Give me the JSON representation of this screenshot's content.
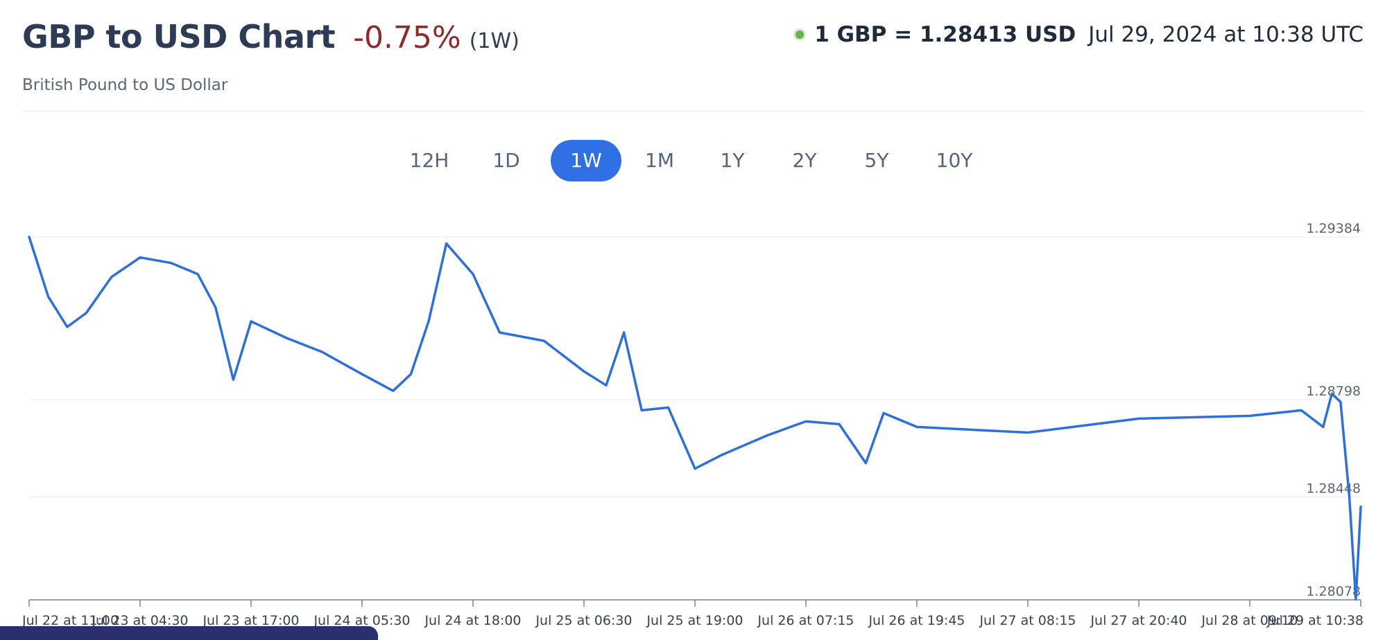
{
  "header": {
    "title": "GBP to USD Chart",
    "change": "-0.75%",
    "period": "(1W)",
    "subtitle": "British Pound to US Dollar",
    "rate": "1 GBP = 1.28413 USD",
    "rate_time": "Jul 29, 2024 at 10:38 UTC"
  },
  "tabs": [
    {
      "label": "12H",
      "active": false
    },
    {
      "label": "1D",
      "active": false
    },
    {
      "label": "1W",
      "active": true
    },
    {
      "label": "1M",
      "active": false
    },
    {
      "label": "1Y",
      "active": false
    },
    {
      "label": "2Y",
      "active": false
    },
    {
      "label": "5Y",
      "active": false
    },
    {
      "label": "10Y",
      "active": false
    }
  ],
  "colors": {
    "line": "#2f6fd8",
    "active_tab": "#2f6fe4",
    "negative": "#8e2a2a",
    "live_dot": "#6ab04c"
  },
  "chart_data": {
    "type": "line",
    "title": "",
    "xlabel": "",
    "ylabel": "",
    "ylim": [
      1.28078,
      1.29384
    ],
    "y_ticks": [
      {
        "value": 1.29384,
        "label": "1.29384"
      },
      {
        "value": 1.28798,
        "label": "1.28798"
      },
      {
        "value": 1.28448,
        "label": "1.28448"
      },
      {
        "value": 1.28078,
        "label": "1.28078"
      }
    ],
    "x_ticks": [
      "Jul 22 at 11:00",
      "Jul 23 at 04:30",
      "Jul 23 at 17:00",
      "Jul 24 at 05:30",
      "Jul 24 at 18:00",
      "Jul 25 at 06:30",
      "Jul 25 at 19:00",
      "Jul 26 at 07:15",
      "Jul 26 at 19:45",
      "Jul 27 at 08:15",
      "Jul 27 at 20:40",
      "Jul 28 at 09:10",
      "Jul 29 at 10:38"
    ],
    "grid": true,
    "series": [
      {
        "values": [
          {
            "x": "Jul 22 at 11:00",
            "y": 1.29384
          },
          {
            "x": "Jul 22 at 14:00",
            "y": 1.2917
          },
          {
            "x": "Jul 22 at 17:00",
            "y": 1.2906
          },
          {
            "x": "Jul 22 at 20:00",
            "y": 1.2911
          },
          {
            "x": "Jul 23 at 00:00",
            "y": 1.2924
          },
          {
            "x": "Jul 23 at 04:30",
            "y": 1.2931
          },
          {
            "x": "Jul 23 at 08:00",
            "y": 1.2929
          },
          {
            "x": "Jul 23 at 11:00",
            "y": 1.2925
          },
          {
            "x": "Jul 23 at 13:00",
            "y": 1.2913
          },
          {
            "x": "Jul 23 at 15:00",
            "y": 1.2887
          },
          {
            "x": "Jul 23 at 17:00",
            "y": 1.2908
          },
          {
            "x": "Jul 23 at 21:00",
            "y": 1.2902
          },
          {
            "x": "Jul 24 at 01:00",
            "y": 1.2897
          },
          {
            "x": "Jul 24 at 05:30",
            "y": 1.2889
          },
          {
            "x": "Jul 24 at 09:00",
            "y": 1.2883
          },
          {
            "x": "Jul 24 at 11:00",
            "y": 1.2889
          },
          {
            "x": "Jul 24 at 13:00",
            "y": 1.2908
          },
          {
            "x": "Jul 24 at 15:00",
            "y": 1.2936
          },
          {
            "x": "Jul 24 at 18:00",
            "y": 1.2925
          },
          {
            "x": "Jul 24 at 21:00",
            "y": 1.2904
          },
          {
            "x": "Jul 25 at 02:00",
            "y": 1.2901
          },
          {
            "x": "Jul 25 at 06:30",
            "y": 1.289
          },
          {
            "x": "Jul 25 at 09:00",
            "y": 1.2885
          },
          {
            "x": "Jul 25 at 11:00",
            "y": 1.2904
          },
          {
            "x": "Jul 25 at 13:00",
            "y": 1.2876
          },
          {
            "x": "Jul 25 at 16:00",
            "y": 1.2877
          },
          {
            "x": "Jul 25 at 19:00",
            "y": 1.2855
          },
          {
            "x": "Jul 25 at 22:00",
            "y": 1.286
          },
          {
            "x": "Jul 26 at 03:00",
            "y": 1.2867
          },
          {
            "x": "Jul 26 at 07:15",
            "y": 1.2872
          },
          {
            "x": "Jul 26 at 11:00",
            "y": 1.2871
          },
          {
            "x": "Jul 26 at 14:00",
            "y": 1.2857
          },
          {
            "x": "Jul 26 at 16:00",
            "y": 1.2875
          },
          {
            "x": "Jul 26 at 19:45",
            "y": 1.287
          },
          {
            "x": "Jul 27 at 08:15",
            "y": 1.2868
          },
          {
            "x": "Jul 27 at 20:40",
            "y": 1.2873
          },
          {
            "x": "Jul 28 at 09:10",
            "y": 1.2874
          },
          {
            "x": "Jul 28 at 21:00",
            "y": 1.2876
          },
          {
            "x": "Jul 29 at 02:00",
            "y": 1.287
          },
          {
            "x": "Jul 29 at 04:00",
            "y": 1.2882
          },
          {
            "x": "Jul 29 at 06:00",
            "y": 1.2879
          },
          {
            "x": "Jul 29 at 08:00",
            "y": 1.2845
          },
          {
            "x": "Jul 29 at 09:30",
            "y": 1.2808
          },
          {
            "x": "Jul 29 at 10:38",
            "y": 1.28413
          }
        ]
      }
    ]
  }
}
